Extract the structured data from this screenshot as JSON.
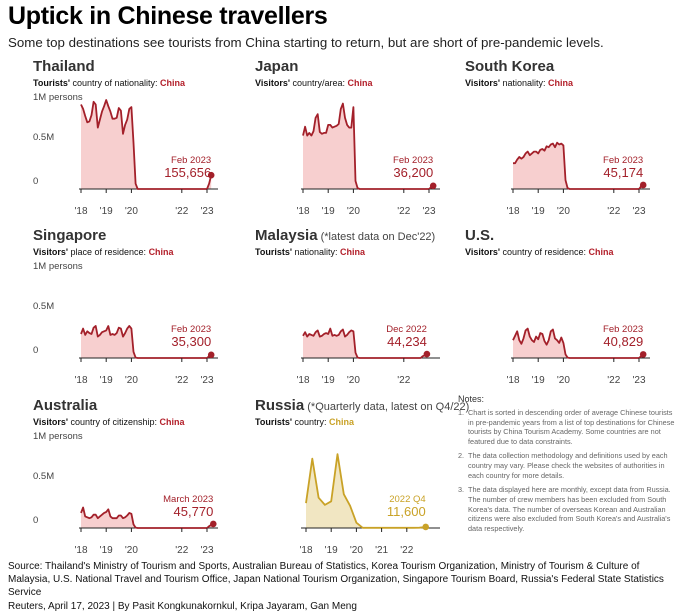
{
  "header": {
    "title": "Uptick in Chinese travellers",
    "subtitle": "Some top destinations see tourists from China starting to return, but are short of pre-pandemic levels."
  },
  "colors": {
    "red_line": "#a3202a",
    "red_fill": "#f7cfcf",
    "gold_line": "#c9a227",
    "gold_fill": "#f1e6c2"
  },
  "chart_data": [
    {
      "id": "thailand",
      "type": "area",
      "title": "Thailand",
      "label_bold": "Tourists'",
      "label_rest": " country of nationality: ",
      "country": "China",
      "y_ticks": [
        "1M persons",
        "0.5M",
        "0"
      ],
      "x_ticks": [
        "'18",
        "'19",
        "'20",
        "'22",
        "'23"
      ],
      "annotation_date": "Feb 2023",
      "annotation_value": "155,656",
      "ylim": [
        0,
        1000000
      ],
      "frequency": "monthly",
      "start": "2018-01",
      "end": "2023-02",
      "values": [
        950000,
        900000,
        820000,
        750000,
        760000,
        830000,
        980000,
        950000,
        690000,
        780000,
        870000,
        930000,
        1000000,
        930000,
        870000,
        790000,
        790000,
        800000,
        910000,
        880000,
        620000,
        720000,
        780000,
        900000,
        920000,
        520000,
        60000,
        0,
        0,
        0,
        0,
        0,
        0,
        0,
        0,
        0,
        0,
        0,
        0,
        0,
        0,
        0,
        0,
        0,
        0,
        0,
        0,
        0,
        0,
        0,
        0,
        0,
        0,
        0,
        0,
        0,
        0,
        0,
        0,
        0,
        0,
        60000,
        155656
      ],
      "color": "red"
    },
    {
      "id": "japan",
      "type": "area",
      "title": "Japan",
      "label_bold": "Visitors'",
      "label_rest": " country/area: ",
      "country": "China",
      "y_ticks": [],
      "x_ticks": [
        "'18",
        "'19",
        "'20",
        "'22",
        "'23"
      ],
      "annotation_date": "Feb 2023",
      "annotation_value": "36,200",
      "ylim": [
        0,
        1000000
      ],
      "frequency": "monthly",
      "start": "2018-01",
      "end": "2023-02",
      "values": [
        600000,
        700000,
        600000,
        630000,
        600000,
        650000,
        800000,
        840000,
        640000,
        620000,
        630000,
        630000,
        720000,
        720000,
        690000,
        700000,
        710000,
        730000,
        900000,
        960000,
        800000,
        720000,
        690000,
        690000,
        920000,
        90000,
        10000,
        0,
        0,
        0,
        0,
        0,
        0,
        0,
        0,
        0,
        0,
        0,
        0,
        0,
        0,
        0,
        0,
        0,
        0,
        0,
        0,
        0,
        0,
        0,
        0,
        0,
        0,
        0,
        0,
        0,
        0,
        0,
        0,
        0,
        0,
        20000,
        36200
      ],
      "color": "red"
    },
    {
      "id": "south-korea",
      "type": "area",
      "title": "South Korea",
      "label_bold": "Visitors'",
      "label_rest": " nationality: ",
      "country": "China",
      "y_ticks": [],
      "x_ticks": [
        "'18",
        "'19",
        "'20",
        "'22",
        "'23"
      ],
      "annotation_date": "Feb 2023",
      "annotation_value": "45,174",
      "ylim": [
        0,
        1000000
      ],
      "frequency": "monthly",
      "start": "2018-01",
      "end": "2023-02",
      "values": [
        290000,
        290000,
        330000,
        360000,
        340000,
        360000,
        400000,
        420000,
        380000,
        400000,
        420000,
        420000,
        400000,
        440000,
        450000,
        430000,
        480000,
        470000,
        500000,
        510000,
        470000,
        520000,
        500000,
        510000,
        490000,
        100000,
        10000,
        0,
        0,
        0,
        0,
        0,
        0,
        0,
        0,
        0,
        0,
        0,
        0,
        0,
        0,
        0,
        0,
        0,
        0,
        0,
        0,
        0,
        0,
        0,
        0,
        0,
        0,
        0,
        0,
        0,
        0,
        0,
        0,
        0,
        0,
        30000,
        45174
      ],
      "color": "red"
    },
    {
      "id": "singapore",
      "type": "area",
      "title": "Singapore",
      "label_bold": "Visitors'",
      "label_rest": " place of residence: ",
      "country": "China",
      "y_ticks": [
        "1M persons",
        "0.5M",
        "0"
      ],
      "x_ticks": [
        "'18",
        "'19",
        "'20",
        "'22",
        "'23"
      ],
      "annotation_date": "Feb 2023",
      "annotation_value": "35,300",
      "ylim": [
        0,
        1000000
      ],
      "frequency": "monthly",
      "start": "2018-01",
      "end": "2023-02",
      "values": [
        270000,
        330000,
        260000,
        300000,
        280000,
        270000,
        340000,
        360000,
        240000,
        260000,
        290000,
        300000,
        310000,
        360000,
        260000,
        270000,
        260000,
        280000,
        340000,
        330000,
        240000,
        280000,
        330000,
        360000,
        330000,
        70000,
        5000,
        0,
        0,
        0,
        0,
        0,
        0,
        0,
        0,
        0,
        0,
        0,
        0,
        0,
        0,
        0,
        0,
        0,
        0,
        0,
        0,
        0,
        0,
        0,
        0,
        0,
        0,
        0,
        0,
        0,
        0,
        0,
        0,
        0,
        0,
        20000,
        35300
      ],
      "color": "red"
    },
    {
      "id": "malaysia",
      "type": "area",
      "title": "Malaysia",
      "title_note": " (*latest data on Dec'22)",
      "label_bold": "Tourists'",
      "label_rest": " nationality: ",
      "country": "China",
      "y_ticks": [],
      "x_ticks": [
        "'18",
        "'19",
        "'20",
        "'22"
      ],
      "annotation_date": "Dec 2022",
      "annotation_value": "44,234",
      "ylim": [
        0,
        1000000
      ],
      "frequency": "monthly",
      "start": "2018-01",
      "end": "2022-12",
      "values": [
        250000,
        290000,
        240000,
        270000,
        260000,
        250000,
        290000,
        310000,
        240000,
        250000,
        270000,
        280000,
        270000,
        330000,
        250000,
        260000,
        250000,
        260000,
        300000,
        320000,
        240000,
        260000,
        290000,
        310000,
        300000,
        60000,
        5000,
        0,
        0,
        0,
        0,
        0,
        0,
        0,
        0,
        0,
        0,
        0,
        0,
        0,
        0,
        0,
        0,
        0,
        0,
        0,
        0,
        0,
        0,
        0,
        0,
        0,
        0,
        0,
        0,
        0,
        0,
        20000,
        30000,
        44234
      ],
      "color": "red"
    },
    {
      "id": "us",
      "type": "area",
      "title": "U.S.",
      "label_bold": "Visitors'",
      "label_rest": " country of residence: ",
      "country": "China",
      "y_ticks": [],
      "x_ticks": [
        "'18",
        "'19",
        "'20",
        "'22",
        "'23"
      ],
      "annotation_date": "Feb 2023",
      "annotation_value": "40,829",
      "ylim": [
        0,
        1000000
      ],
      "frequency": "monthly",
      "start": "2018-01",
      "end": "2023-02",
      "values": [
        200000,
        250000,
        300000,
        200000,
        160000,
        220000,
        310000,
        330000,
        240000,
        200000,
        180000,
        240000,
        210000,
        280000,
        270000,
        190000,
        150000,
        200000,
        300000,
        320000,
        220000,
        200000,
        170000,
        230000,
        170000,
        40000,
        5000,
        0,
        0,
        0,
        0,
        0,
        0,
        0,
        0,
        0,
        0,
        0,
        0,
        0,
        0,
        0,
        0,
        0,
        0,
        0,
        0,
        0,
        0,
        0,
        0,
        0,
        0,
        0,
        0,
        0,
        0,
        0,
        0,
        0,
        0,
        20000,
        40829
      ],
      "color": "red"
    },
    {
      "id": "australia",
      "type": "area",
      "title": "Australia",
      "label_bold": "Visitors'",
      "label_rest": " country of citizenship: ",
      "country": "China",
      "y_ticks": [
        "1M persons",
        "0.5M",
        "0"
      ],
      "x_ticks": [
        "'18",
        "'19",
        "'20",
        "'22",
        "'23"
      ],
      "annotation_date": "March 2023",
      "annotation_value": "45,770",
      "ylim": [
        0,
        1000000
      ],
      "frequency": "monthly",
      "start": "2018-01",
      "end": "2023-03",
      "values": [
        170000,
        230000,
        130000,
        120000,
        110000,
        120000,
        150000,
        150000,
        110000,
        130000,
        150000,
        170000,
        180000,
        210000,
        130000,
        110000,
        110000,
        110000,
        140000,
        140000,
        110000,
        120000,
        140000,
        170000,
        160000,
        40000,
        5000,
        0,
        0,
        0,
        0,
        0,
        0,
        0,
        0,
        0,
        0,
        0,
        0,
        0,
        0,
        0,
        0,
        0,
        0,
        0,
        0,
        0,
        0,
        0,
        0,
        0,
        0,
        0,
        0,
        0,
        0,
        0,
        0,
        0,
        0,
        20000,
        35000,
        45770
      ],
      "color": "red"
    },
    {
      "id": "russia",
      "type": "area",
      "title": "Russia",
      "title_note": " (*Quarterly data, latest on Q4/22)",
      "label_bold": "Tourists'",
      "label_rest": " country: ",
      "country": "China",
      "y_ticks": [],
      "x_ticks": [
        "'18",
        "'19",
        "'20",
        "'21",
        "'22"
      ],
      "annotation_date": "2022 Q4",
      "annotation_value": "11,600",
      "ylim": [
        0,
        1000000
      ],
      "frequency": "quarterly",
      "start": "2018-Q1",
      "end": "2022-Q4",
      "values": [
        280000,
        780000,
        340000,
        260000,
        300000,
        830000,
        380000,
        250000,
        60000,
        2000,
        2000,
        2000,
        2000,
        2000,
        2000,
        2000,
        2000,
        2000,
        3000,
        11600
      ],
      "color": "gold"
    }
  ],
  "notes": {
    "title": "Notes:",
    "items": [
      {
        "num": "1.",
        "text": "Chart is sorted in descending order of average Chinese tourists in pre-pandemic years from a list of top destinations for Chinese tourists by China Tourism Academy. Some countries are not featured due to data constraints."
      },
      {
        "num": "2.",
        "text": "The data collection methodology and definitions used by each country may vary. Please check the websites of authorities in each country for more details."
      },
      {
        "num": "3.",
        "text": "The data displayed here are monthly, except data from Russia. The number of crew members has been excluded from South Korea's data. The number of overseas Korean and Australian citizens were also excluded from South Korea's and Australia's data respectively."
      }
    ]
  },
  "footer": {
    "source": "Source: Thailand's Ministry of Tourism and Sports, Australian Bureau of Statistics, Korea Tourism Organization, Ministry of Tourism & Culture of Malaysia, U.S. National Travel and Tourism Office, Japan National Tourism Organization, Singapore Tourism Board, Russia's Federal State Statistics Service",
    "credit": "Reuters, April 17, 2023 | By Pasit Kongkunakornkul, Kripa Jayaram, Gan Meng"
  }
}
